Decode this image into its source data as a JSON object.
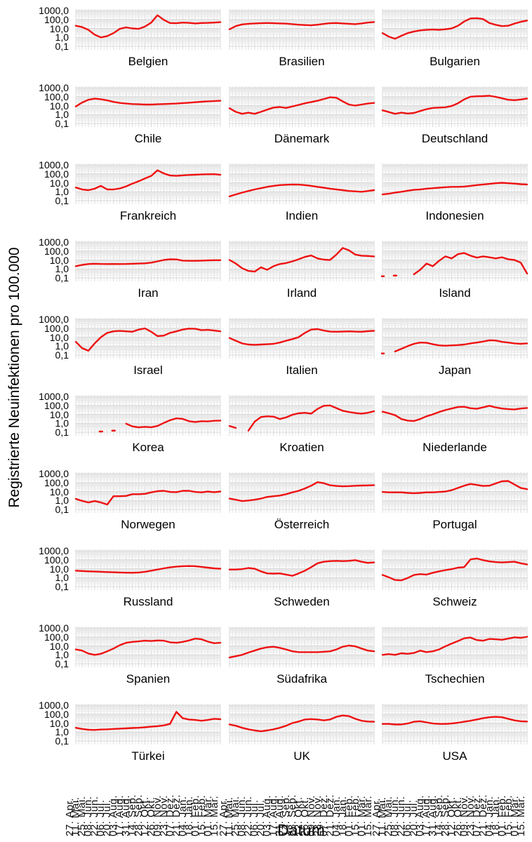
{
  "y_axis": {
    "title": "Registrierte Neuinfektionen pro 100.000",
    "tick_labels": [
      "1000,0",
      "100,0",
      "10,0",
      "1,0",
      "0,1"
    ],
    "tick_values": [
      1000,
      100,
      10,
      1,
      0.1
    ]
  },
  "x_axis": {
    "title": "Datum",
    "tick_labels": [
      "27. Apr.",
      "11. Mai.",
      "25. Mai.",
      "08. Jun.",
      "22. Jun.",
      "06. Jul.",
      "20. Jul.",
      "03. Aug.",
      "17. Aug.",
      "31. Aug.",
      "14. Sep.",
      "28. Sep.",
      "12. Okt.",
      "26. Okt.",
      "09. Nov.",
      "23. Nov.",
      "07. Dez.",
      "21. Dez.",
      "04. Jan.",
      "18. Jan.",
      "01. Feb.",
      "15. Feb.",
      "01. Mär.",
      "15. Mär."
    ]
  },
  "style": {
    "line_color": "#ee1111",
    "grid_minor_color": "#e8e8e8",
    "grid_major_color": "#d9d9d9",
    "text_color": "#000000"
  },
  "chart_data": {
    "type": "line",
    "scale": "log10",
    "ylim": [
      0.1,
      1000
    ],
    "ylabel": "Registrierte Neuinfektionen pro 100.000",
    "xlabel": "Datum",
    "grid": "on",
    "legend": "none",
    "x": [
      "27. Apr.",
      "11. Mai.",
      "25. Mai.",
      "08. Jun.",
      "22. Jun.",
      "06. Jul.",
      "20. Jul.",
      "03. Aug.",
      "17. Aug.",
      "31. Aug.",
      "14. Sep.",
      "28. Sep.",
      "12. Okt.",
      "26. Okt.",
      "09. Nov.",
      "23. Nov.",
      "07. Dez.",
      "21. Dez.",
      "04. Jan.",
      "18. Jan.",
      "01. Feb.",
      "15. Feb.",
      "01. Mär.",
      "15. Mär."
    ],
    "panels": [
      {
        "country": "Belgien",
        "values": [
          20,
          14,
          7,
          2,
          1,
          1.4,
          3,
          9,
          13,
          10,
          9,
          16,
          45,
          300,
          90,
          40,
          38,
          45,
          42,
          36,
          40,
          42,
          45,
          50
        ]
      },
      {
        "country": "Brasilien",
        "values": [
          8,
          18,
          28,
          33,
          36,
          38,
          40,
          38,
          36,
          34,
          30,
          26,
          24,
          22,
          26,
          32,
          38,
          40,
          36,
          33,
          30,
          36,
          45,
          52
        ]
      },
      {
        "country": "Bulgarien",
        "values": [
          3,
          1.2,
          0.7,
          1.5,
          3,
          4.5,
          6,
          7,
          7.5,
          7,
          8,
          10,
          20,
          60,
          130,
          140,
          110,
          40,
          25,
          18,
          20,
          35,
          55,
          75
        ]
      },
      {
        "country": "Chile",
        "values": [
          8,
          22,
          45,
          60,
          52,
          38,
          26,
          20,
          17,
          15,
          14,
          13,
          13,
          14,
          15,
          16,
          17,
          19,
          21,
          24,
          27,
          30,
          32,
          35
        ]
      },
      {
        "country": "Dänemark",
        "values": [
          5,
          2,
          1.2,
          1.6,
          1.2,
          2,
          3.5,
          6,
          7,
          5.5,
          8,
          12,
          18,
          25,
          35,
          55,
          85,
          75,
          30,
          13,
          10,
          13,
          17,
          20
        ]
      },
      {
        "country": "Deutschland",
        "values": [
          3,
          1.9,
          1.2,
          1.6,
          1.3,
          1.5,
          2.5,
          4,
          5.5,
          6,
          6.5,
          9,
          18,
          50,
          100,
          110,
          115,
          125,
          95,
          65,
          45,
          40,
          48,
          62
        ]
      },
      {
        "country": "Frankreich",
        "values": [
          3,
          1.8,
          1.5,
          2.2,
          4.5,
          1.8,
          1.8,
          2.3,
          4,
          8,
          15,
          30,
          60,
          250,
          110,
          65,
          60,
          68,
          75,
          80,
          85,
          90,
          92,
          78
        ]
      },
      {
        "country": "Indien",
        "values": [
          0.3,
          0.5,
          0.8,
          1.2,
          1.8,
          2.5,
          3.5,
          4.5,
          5.5,
          6,
          6.5,
          6.2,
          5.5,
          4.5,
          3.5,
          2.8,
          2.2,
          1.8,
          1.5,
          1.2,
          1.1,
          1,
          1.2,
          1.5
        ]
      },
      {
        "country": "Indonesien",
        "values": [
          0.5,
          0.6,
          0.8,
          1,
          1.3,
          1.6,
          1.8,
          2.2,
          2.5,
          2.8,
          3.2,
          3.5,
          3.5,
          3.8,
          4.5,
          5.5,
          6.5,
          7.5,
          9,
          10,
          9,
          8,
          7,
          6.5
        ]
      },
      {
        "country": "Iran",
        "values": [
          2,
          2.8,
          3.5,
          3.8,
          3.6,
          3.5,
          3.6,
          3.5,
          3.6,
          3.8,
          4,
          4.2,
          5,
          7,
          10,
          12,
          11.5,
          8.5,
          8,
          8,
          8.5,
          9,
          9.5,
          9.5
        ]
      },
      {
        "country": "Irland",
        "values": [
          10,
          4,
          1.2,
          0.6,
          0.5,
          1.5,
          0.8,
          2,
          3.5,
          4.5,
          7,
          12,
          22,
          32,
          15,
          11,
          10,
          40,
          220,
          120,
          40,
          30,
          28,
          25
        ]
      },
      {
        "country": "Island",
        "values": [
          0.15,
          null,
          0.18,
          null,
          null,
          0.25,
          0.8,
          4,
          2,
          8,
          25,
          15,
          45,
          60,
          30,
          18,
          25,
          20,
          15,
          20,
          12,
          10,
          5,
          0.3
        ]
      },
      {
        "country": "Israel",
        "values": [
          3,
          0.6,
          0.3,
          2,
          10,
          30,
          45,
          50,
          45,
          40,
          70,
          95,
          40,
          13,
          15,
          30,
          45,
          70,
          90,
          85,
          60,
          65,
          55,
          45
        ]
      },
      {
        "country": "Italien",
        "values": [
          8,
          4,
          2,
          1.5,
          1.4,
          1.5,
          1.6,
          1.8,
          2.5,
          4,
          6,
          10,
          30,
          70,
          80,
          55,
          42,
          40,
          42,
          45,
          42,
          40,
          46,
          52
        ]
      },
      {
        "country": "Japan",
        "values": [
          0.15,
          null,
          0.25,
          0.5,
          1,
          1.8,
          2.5,
          2.3,
          1.6,
          1.2,
          1.1,
          1.2,
          1.3,
          1.5,
          2,
          2.5,
          3.2,
          4.5,
          4.2,
          3,
          2.5,
          2,
          1.8,
          2
        ]
      },
      {
        "country": "Korea",
        "values": [
          null,
          null,
          null,
          null,
          0.12,
          null,
          0.15,
          null,
          0.9,
          0.45,
          0.35,
          0.4,
          0.36,
          0.5,
          1.1,
          2.2,
          3.6,
          3.1,
          1.7,
          1.4,
          1.7,
          1.6,
          1.9,
          2
        ]
      },
      {
        "country": "Kroatien",
        "values": [
          0.5,
          0.3,
          null,
          0.15,
          1.5,
          5,
          6,
          5.5,
          3,
          4.5,
          9,
          13,
          15,
          12,
          40,
          90,
          100,
          50,
          25,
          18,
          14,
          12,
          15,
          22
        ]
      },
      {
        "country": "Niederlande",
        "values": [
          20,
          13,
          8,
          3,
          2,
          1.8,
          3,
          6,
          10,
          18,
          30,
          45,
          65,
          70,
          48,
          42,
          60,
          90,
          60,
          45,
          38,
          35,
          45,
          52
        ]
      },
      {
        "country": "Norwegen",
        "values": [
          1.5,
          0.9,
          0.6,
          0.85,
          0.6,
          0.35,
          3,
          3,
          3.2,
          5,
          5,
          5.5,
          8,
          11,
          12,
          9,
          8.5,
          12,
          12,
          9,
          8,
          10,
          8.5,
          10
        ]
      },
      {
        "country": "Österreich",
        "values": [
          1.6,
          1.2,
          0.85,
          1,
          1.2,
          1.6,
          2.5,
          3,
          3.5,
          5,
          8,
          12,
          22,
          45,
          110,
          85,
          50,
          42,
          38,
          40,
          44,
          46,
          48,
          52
        ]
      },
      {
        "country": "Portugal",
        "values": [
          9,
          8,
          8,
          8,
          7,
          6.5,
          7,
          8,
          8,
          9,
          10,
          14,
          25,
          45,
          70,
          55,
          42,
          45,
          80,
          140,
          150,
          60,
          25,
          18
        ]
      },
      {
        "country": "Russland",
        "values": [
          6,
          5.5,
          5,
          4.8,
          4.5,
          4.2,
          4,
          3.8,
          3.6,
          3.5,
          3.8,
          4.5,
          6,
          8,
          11,
          14,
          17,
          19,
          20,
          19,
          16,
          13,
          11,
          10
        ]
      },
      {
        "country": "Schweden",
        "values": [
          8,
          8,
          9,
          12,
          10,
          5,
          3,
          2.8,
          3,
          2.2,
          1.6,
          3,
          6,
          15,
          40,
          60,
          70,
          75,
          70,
          75,
          90,
          60,
          45,
          50
        ]
      },
      {
        "country": "Schweiz",
        "values": [
          2,
          1.1,
          0.55,
          0.5,
          0.9,
          2,
          2.5,
          2.2,
          3.5,
          5,
          7,
          9,
          13,
          15,
          110,
          140,
          90,
          65,
          55,
          50,
          55,
          60,
          40,
          30
        ]
      },
      {
        "country": "Spanien",
        "values": [
          4,
          3,
          1.4,
          1,
          1.3,
          2.5,
          5,
          12,
          22,
          28,
          32,
          38,
          35,
          40,
          38,
          25,
          22,
          28,
          40,
          65,
          55,
          30,
          20,
          22
        ]
      },
      {
        "country": "Südafrika",
        "values": [
          0.5,
          0.7,
          1,
          1.8,
          3,
          5,
          7,
          8,
          6,
          4,
          2.5,
          2,
          2,
          2,
          2,
          2.2,
          2.5,
          4,
          8,
          11,
          9,
          5,
          3,
          2.5
        ]
      },
      {
        "country": "Tschechien",
        "values": [
          1,
          1.2,
          1,
          1.5,
          1.3,
          1.6,
          3,
          2,
          2.5,
          4,
          9,
          18,
          35,
          70,
          85,
          45,
          38,
          60,
          55,
          48,
          65,
          90,
          80,
          105
        ]
      },
      {
        "country": "Türkei",
        "values": [
          3,
          2.2,
          1.8,
          1.7,
          1.9,
          2,
          2.2,
          2.4,
          2.6,
          2.8,
          3,
          3.4,
          4,
          4.5,
          5.5,
          8,
          180,
          35,
          25,
          22,
          18,
          22,
          30,
          27
        ]
      },
      {
        "country": "UK",
        "values": [
          7,
          5,
          3,
          2,
          1.5,
          1.2,
          1.5,
          2,
          3,
          5,
          10,
          15,
          25,
          28,
          25,
          20,
          25,
          50,
          70,
          60,
          30,
          18,
          15,
          14
        ]
      },
      {
        "country": "USA",
        "values": [
          8,
          8,
          7,
          7,
          9,
          14,
          16,
          12,
          9,
          8,
          8,
          9,
          11,
          14,
          18,
          25,
          35,
          45,
          50,
          45,
          30,
          20,
          16,
          15
        ]
      }
    ]
  }
}
